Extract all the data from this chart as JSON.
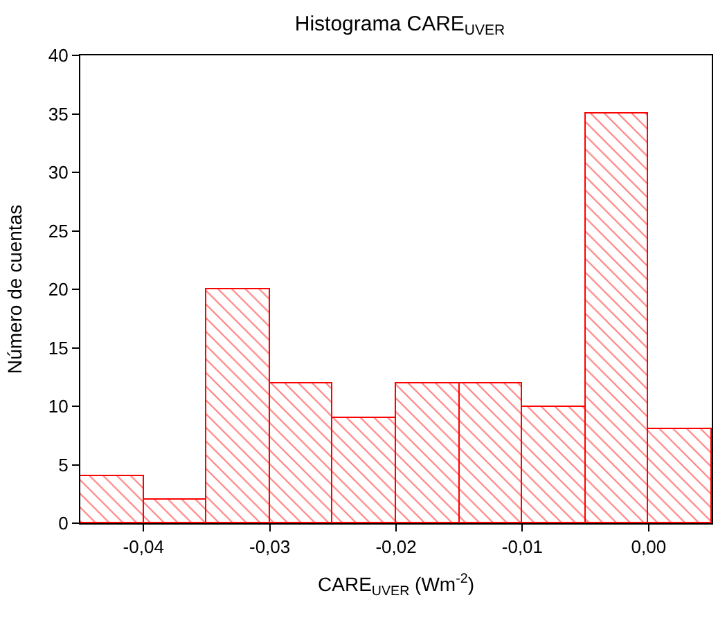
{
  "chart_data": {
    "type": "histogram",
    "title": "Histograma CARE$_{UVER}$",
    "xlabel": "CARE$_{UVER}$ (Wm$^{-2}$)",
    "ylabel": "Número de cuentas",
    "bins": [
      -0.045,
      -0.04,
      -0.035,
      -0.03,
      -0.025,
      -0.02,
      -0.015,
      -0.01,
      -0.005,
      0.0,
      0.005
    ],
    "values": [
      4,
      2,
      20,
      12,
      9,
      12,
      12,
      10,
      35,
      8
    ],
    "color": "#ff0000",
    "xlim": [
      -0.045,
      0.005
    ],
    "xticks": [
      {
        "value": -0.04,
        "label": "-0,04"
      },
      {
        "value": -0.03,
        "label": "-0,03"
      },
      {
        "value": -0.02,
        "label": "-0,02"
      },
      {
        "value": -0.01,
        "label": "-0,01"
      },
      {
        "value": 0.0,
        "label": "0,00"
      }
    ],
    "ylim": [
      0,
      40
    ],
    "yticks": [
      0,
      5,
      10,
      15,
      20,
      25,
      30,
      35,
      40
    ]
  }
}
